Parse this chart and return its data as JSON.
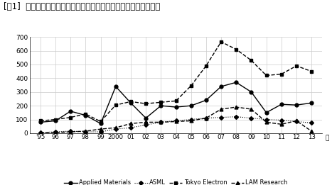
{
  "title": "[図1]  世界の主要半導体装備企業による年度別の韓国特許出願動向",
  "years": [
    1995,
    1996,
    1997,
    1998,
    1999,
    2000,
    2001,
    2002,
    2003,
    2004,
    2005,
    2006,
    2007,
    2008,
    2009,
    2010,
    2011,
    2012,
    2013
  ],
  "applied_materials": [
    80,
    90,
    160,
    130,
    70,
    340,
    220,
    110,
    200,
    190,
    200,
    240,
    340,
    370,
    300,
    150,
    210,
    205,
    220
  ],
  "asml": [
    5,
    10,
    15,
    10,
    10,
    30,
    40,
    60,
    80,
    90,
    100,
    110,
    115,
    120,
    110,
    100,
    95,
    85,
    75
  ],
  "tokyo_electron": [
    90,
    100,
    115,
    140,
    85,
    205,
    230,
    215,
    225,
    235,
    345,
    490,
    665,
    610,
    530,
    420,
    430,
    490,
    450
  ],
  "lam_research": [
    5,
    5,
    10,
    15,
    30,
    40,
    70,
    80,
    80,
    85,
    90,
    110,
    175,
    190,
    175,
    80,
    65,
    90,
    15
  ],
  "xticklabels": [
    "'95",
    "96",
    "97",
    "98",
    "99",
    "2000",
    "01",
    "02",
    "03",
    "04",
    "05",
    "06",
    "07",
    "08",
    "09",
    "10",
    "11",
    "12",
    "13"
  ],
  "legend_labels": [
    "Applied Materials",
    "ASML",
    "Tokyo Electron",
    "LAM Research"
  ],
  "ylabel_note": "年",
  "ylim": [
    0,
    700
  ],
  "yticks": [
    0,
    100,
    200,
    300,
    400,
    500,
    600,
    700
  ],
  "linestyles": [
    "-",
    ":",
    "--",
    "--"
  ],
  "markers": [
    "o",
    "D",
    "s",
    "^"
  ],
  "marker_sizes": [
    3.5,
    3.0,
    3.5,
    3.5
  ],
  "linewidths": [
    1.0,
    0.8,
    1.0,
    1.0
  ],
  "color": "#000000",
  "bg_color": "#ffffff",
  "grid_color": "#cccccc",
  "title_fontsize": 8.5,
  "tick_fontsize": 6.5,
  "legend_fontsize": 6.0
}
